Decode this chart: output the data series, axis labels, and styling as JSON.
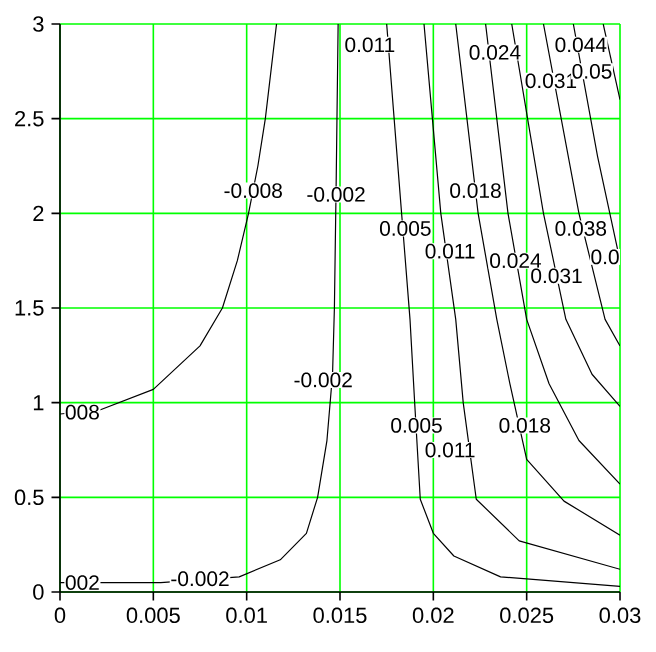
{
  "chart_data": {
    "type": "line",
    "grid": true,
    "marker": "none",
    "line_style": "solid",
    "xlim": [
      0,
      0.03
    ],
    "ylim": [
      0,
      3
    ],
    "xticks": [
      0,
      0.005,
      0.01,
      0.015,
      0.02,
      0.025,
      0.03
    ],
    "yticks": [
      0,
      0.5,
      1,
      1.5,
      2,
      2.5,
      3
    ],
    "series": [
      {
        "color": "#000000",
        "x": [
          0,
          0.0021,
          0.005,
          0.0075,
          0.0087,
          0.0095,
          0.0101,
          0.0106,
          0.011,
          0.0116
        ],
        "values": [
          0.94,
          0.96,
          1.07,
          1.3,
          1.5,
          1.75,
          2.0,
          2.25,
          2.5,
          3.0
        ]
      },
      {
        "color": "#000000",
        "x": [
          0,
          0.0021,
          0.0054,
          0.0096,
          0.0118,
          0.0132,
          0.0138,
          0.0143,
          0.0146,
          0.0147,
          0.0148,
          0.0149
        ],
        "values": [
          0.05,
          0.05,
          0.05,
          0.08,
          0.17,
          0.31,
          0.5,
          0.8,
          1.15,
          1.5,
          2.2,
          3.0
        ]
      },
      {
        "color": "#000000",
        "x": [
          0.0175,
          0.0183,
          0.01875,
          0.019,
          0.0193,
          0.02,
          0.0211,
          0.0236,
          0.03
        ],
        "values": [
          3,
          2,
          1.44,
          1,
          0.49,
          0.31,
          0.19,
          0.08,
          0.03
        ]
      },
      {
        "color": "#000000",
        "x": [
          0.0195,
          0.0204,
          0.0212,
          0.0216,
          0.0223,
          0.0246,
          0.03
        ],
        "values": [
          3,
          2,
          1.44,
          1,
          0.49,
          0.27,
          0.12
        ]
      },
      {
        "color": "#000000",
        "x": [
          0.0212,
          0.0224,
          0.0234,
          0.0241,
          0.025,
          0.027,
          0.03
        ],
        "values": [
          3,
          2,
          1.44,
          1.1,
          0.7,
          0.48,
          0.3
        ]
      },
      {
        "color": "#000000",
        "x": [
          0.0228,
          0.024,
          0.025,
          0.0262,
          0.0278,
          0.03
        ],
        "values": [
          3,
          2,
          1.44,
          1.1,
          0.8,
          0.57
        ]
      },
      {
        "color": "#000000",
        "x": [
          0.0242,
          0.0259,
          0.0271,
          0.0285,
          0.03
        ],
        "values": [
          3,
          2,
          1.44,
          1.15,
          0.98
        ]
      },
      {
        "color": "#000000",
        "x": [
          0.0259,
          0.0278,
          0.0292,
          0.03
        ],
        "values": [
          3,
          2,
          1.44,
          1.3
        ]
      },
      {
        "color": "#000000",
        "x": [
          0.0275,
          0.0288,
          0.03
        ],
        "values": [
          3,
          2.3,
          1.75
        ]
      },
      {
        "color": "#000000",
        "x": [
          0.0291,
          0.03
        ],
        "values": [
          3,
          2.6
        ]
      }
    ],
    "annotations": [
      {
        "text": "-0.008",
        "x": 0.01035,
        "y": 2.12
      },
      {
        "text": "008",
        "x": 0.0012,
        "y": 0.95
      },
      {
        "text": "-0.002",
        "x": 0.01479,
        "y": 2.1
      },
      {
        "text": "-0.002",
        "x": 0.0141,
        "y": 1.12
      },
      {
        "text": "-0.002",
        "x": 0.0075,
        "y": 0.07
      },
      {
        "text": "002",
        "x": 0.0012,
        "y": 0.05
      },
      {
        "text": "0.005",
        "x": 0.0185,
        "y": 1.92
      },
      {
        "text": "0.005",
        "x": 0.0191,
        "y": 0.88
      },
      {
        "text": "0.011",
        "x": 0.0166,
        "y": 2.89
      },
      {
        "text": "0.011",
        "x": 0.0209,
        "y": 1.8
      },
      {
        "text": "0.011",
        "x": 0.0209,
        "y": 0.75
      },
      {
        "text": "0.018",
        "x": 0.02226,
        "y": 2.12
      },
      {
        "text": "0.018",
        "x": 0.0249,
        "y": 0.88
      },
      {
        "text": "0.024",
        "x": 0.0233,
        "y": 2.85
      },
      {
        "text": "0.024",
        "x": 0.0244,
        "y": 1.75
      },
      {
        "text": "0.031",
        "x": 0.0263,
        "y": 2.7
      },
      {
        "text": "0.031",
        "x": 0.0266,
        "y": 1.67
      },
      {
        "text": "0.038",
        "x": 0.0279,
        "y": 1.92
      },
      {
        "text": "0.044",
        "x": 0.0279,
        "y": 2.89
      },
      {
        "text": "0.05",
        "x": 0.0285,
        "y": 2.75
      },
      {
        "text": "0.0",
        "x": 0.0292,
        "y": 1.77
      }
    ]
  }
}
